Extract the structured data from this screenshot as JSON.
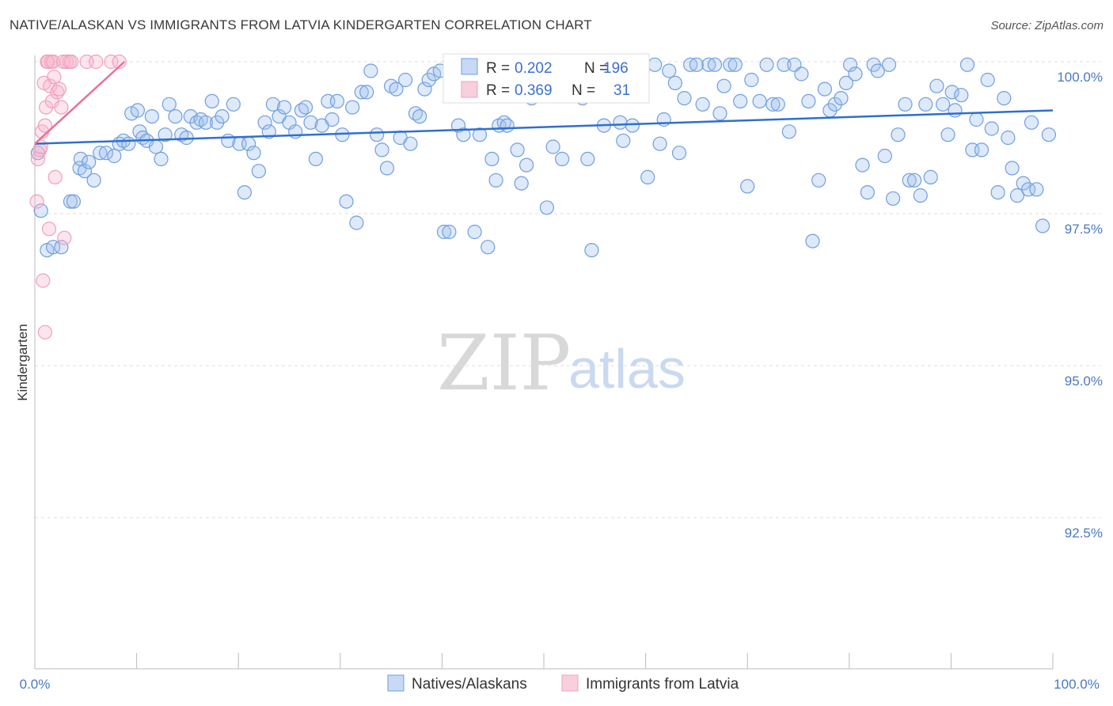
{
  "header": {
    "title": "NATIVE/ALASKAN VS IMMIGRANTS FROM LATVIA KINDERGARTEN CORRELATION CHART",
    "source": "Source: ZipAtlas.com"
  },
  "watermark": {
    "part1": "ZIP",
    "part2": "atlas"
  },
  "colors": {
    "blue": "#6f9fe0",
    "blue_line": "#2f6fd0",
    "pink": "#f0a0bc",
    "pink_line": "#e8709a",
    "tick_text": "#4a78c8"
  },
  "stats": [
    {
      "series": "Natives/Alaskans",
      "r_label": "R =",
      "r_value": "0.202",
      "n_label": "N =",
      "n_value": "196"
    },
    {
      "series": "Immigrants from Latvia",
      "r_label": "R =",
      "r_value": "0.369",
      "n_label": "N =",
      "n_value": "31"
    }
  ],
  "chart_data": {
    "type": "scatter",
    "title": "NATIVE/ALASKAN VS IMMIGRANTS FROM LATVIA KINDERGARTEN CORRELATION CHART",
    "xlabel": "",
    "ylabel": "Kindergarten",
    "xlim": [
      0,
      100
    ],
    "ylim": [
      90.0,
      100.5
    ],
    "x_tick_labels": [
      "0.0%",
      "100.0%"
    ],
    "y_ticks": [
      100.0,
      97.5,
      95.0,
      92.5
    ],
    "y_tick_labels": [
      "100.0%",
      "97.5%",
      "95.0%",
      "92.5%"
    ],
    "grid": "horizontal dashed",
    "legend": "bottom-center",
    "series": [
      {
        "name": "Natives/Alaskans",
        "color": "#6f9fe0",
        "trend": {
          "x": [
            0,
            100
          ],
          "y": [
            98.65,
            99.2
          ]
        },
        "points": [
          [
            0.3,
            98.5
          ],
          [
            0.6,
            97.55
          ],
          [
            1.2,
            96.9
          ],
          [
            1.8,
            96.95
          ],
          [
            2.6,
            96.95
          ],
          [
            3.5,
            97.7
          ],
          [
            3.8,
            97.7
          ],
          [
            4.4,
            98.25
          ],
          [
            4.5,
            98.4
          ],
          [
            4.9,
            98.2
          ],
          [
            5.3,
            98.35
          ],
          [
            5.8,
            98.05
          ],
          [
            6.4,
            98.5
          ],
          [
            7.0,
            98.5
          ],
          [
            7.8,
            98.45
          ],
          [
            8.3,
            98.65
          ],
          [
            8.7,
            98.7
          ],
          [
            9.2,
            98.65
          ],
          [
            9.5,
            99.15
          ],
          [
            10.1,
            99.2
          ],
          [
            10.3,
            98.85
          ],
          [
            10.6,
            98.75
          ],
          [
            11.0,
            98.7
          ],
          [
            11.5,
            99.1
          ],
          [
            11.9,
            98.6
          ],
          [
            12.4,
            98.4
          ],
          [
            12.8,
            98.8
          ],
          [
            13.2,
            99.3
          ],
          [
            13.8,
            99.1
          ],
          [
            14.4,
            98.8
          ],
          [
            14.9,
            98.75
          ],
          [
            15.3,
            99.1
          ],
          [
            15.9,
            99.0
          ],
          [
            16.3,
            99.05
          ],
          [
            16.8,
            99.0
          ],
          [
            17.4,
            99.35
          ],
          [
            17.9,
            99.0
          ],
          [
            18.4,
            99.1
          ],
          [
            19.0,
            98.7
          ],
          [
            19.5,
            99.3
          ],
          [
            20.1,
            98.65
          ],
          [
            20.6,
            97.85
          ],
          [
            21.0,
            98.65
          ],
          [
            21.5,
            98.5
          ],
          [
            22.0,
            98.2
          ],
          [
            22.6,
            99.0
          ],
          [
            23.0,
            98.85
          ],
          [
            23.4,
            99.3
          ],
          [
            24.0,
            99.1
          ],
          [
            24.5,
            99.25
          ],
          [
            25.0,
            99.0
          ],
          [
            25.6,
            98.85
          ],
          [
            26.2,
            99.2
          ],
          [
            26.6,
            99.25
          ],
          [
            27.1,
            99.0
          ],
          [
            27.6,
            98.4
          ],
          [
            28.2,
            98.95
          ],
          [
            28.8,
            99.35
          ],
          [
            29.2,
            99.05
          ],
          [
            29.7,
            99.35
          ],
          [
            30.2,
            98.8
          ],
          [
            30.6,
            97.7
          ],
          [
            31.2,
            99.25
          ],
          [
            31.6,
            97.35
          ],
          [
            32.1,
            99.5
          ],
          [
            32.6,
            99.5
          ],
          [
            33.0,
            99.85
          ],
          [
            33.6,
            98.8
          ],
          [
            34.1,
            98.55
          ],
          [
            34.6,
            98.25
          ],
          [
            35.0,
            99.6
          ],
          [
            35.5,
            99.55
          ],
          [
            35.9,
            98.75
          ],
          [
            36.4,
            99.7
          ],
          [
            36.9,
            98.65
          ],
          [
            37.4,
            99.15
          ],
          [
            37.8,
            99.1
          ],
          [
            38.3,
            99.55
          ],
          [
            38.7,
            99.7
          ],
          [
            39.2,
            99.8
          ],
          [
            39.8,
            99.85
          ],
          [
            40.2,
            97.2
          ],
          [
            40.7,
            97.2
          ],
          [
            41.2,
            99.55
          ],
          [
            41.6,
            98.95
          ],
          [
            42.1,
            98.8
          ],
          [
            42.6,
            99.45
          ],
          [
            43.2,
            97.2
          ],
          [
            43.7,
            98.8
          ],
          [
            44.1,
            99.6
          ],
          [
            44.5,
            96.95
          ],
          [
            44.9,
            98.4
          ],
          [
            45.3,
            98.05
          ],
          [
            45.6,
            98.95
          ],
          [
            46.1,
            99.0
          ],
          [
            46.4,
            98.95
          ],
          [
            46.9,
            99.85
          ],
          [
            47.4,
            98.55
          ],
          [
            47.8,
            98.0
          ],
          [
            48.3,
            98.3
          ],
          [
            48.8,
            99.4
          ],
          [
            49.4,
            99.95
          ],
          [
            50.0,
            99.95
          ],
          [
            50.3,
            97.6
          ],
          [
            50.9,
            98.6
          ],
          [
            51.3,
            99.6
          ],
          [
            51.8,
            98.4
          ],
          [
            52.4,
            99.95
          ],
          [
            52.9,
            99.85
          ],
          [
            53.3,
            99.5
          ],
          [
            53.8,
            99.4
          ],
          [
            54.3,
            98.4
          ],
          [
            54.7,
            96.9
          ],
          [
            55.3,
            99.9
          ],
          [
            55.9,
            98.95
          ],
          [
            56.5,
            99.95
          ],
          [
            57.0,
            99.9
          ],
          [
            57.5,
            99.0
          ],
          [
            57.8,
            98.7
          ],
          [
            58.3,
            99.95
          ],
          [
            58.7,
            98.95
          ],
          [
            59.2,
            99.9
          ],
          [
            59.7,
            99.85
          ],
          [
            60.2,
            98.1
          ],
          [
            60.9,
            99.95
          ],
          [
            61.4,
            98.65
          ],
          [
            61.8,
            99.05
          ],
          [
            62.3,
            99.85
          ],
          [
            62.9,
            99.65
          ],
          [
            63.3,
            98.5
          ],
          [
            63.8,
            99.4
          ],
          [
            64.4,
            99.95
          ],
          [
            65.0,
            99.95
          ],
          [
            65.6,
            99.3
          ],
          [
            66.2,
            99.95
          ],
          [
            66.8,
            99.95
          ],
          [
            67.3,
            99.15
          ],
          [
            67.7,
            99.6
          ],
          [
            68.3,
            99.95
          ],
          [
            68.8,
            99.95
          ],
          [
            69.3,
            99.35
          ],
          [
            70.0,
            97.95
          ],
          [
            70.4,
            99.7
          ],
          [
            71.2,
            99.35
          ],
          [
            71.9,
            99.95
          ],
          [
            72.5,
            99.3
          ],
          [
            73.0,
            99.3
          ],
          [
            73.6,
            99.95
          ],
          [
            74.1,
            98.85
          ],
          [
            74.6,
            99.95
          ],
          [
            75.3,
            99.8
          ],
          [
            76.0,
            99.35
          ],
          [
            76.4,
            97.05
          ],
          [
            77.0,
            98.05
          ],
          [
            77.6,
            99.55
          ],
          [
            78.1,
            99.2
          ],
          [
            78.6,
            99.3
          ],
          [
            79.2,
            99.4
          ],
          [
            79.7,
            99.65
          ],
          [
            80.1,
            99.95
          ],
          [
            80.6,
            99.8
          ],
          [
            81.3,
            98.3
          ],
          [
            81.8,
            97.85
          ],
          [
            82.4,
            99.95
          ],
          [
            82.8,
            99.85
          ],
          [
            83.5,
            98.45
          ],
          [
            83.9,
            99.95
          ],
          [
            84.3,
            97.75
          ],
          [
            84.8,
            98.8
          ],
          [
            85.5,
            99.3
          ],
          [
            85.9,
            98.05
          ],
          [
            86.4,
            98.05
          ],
          [
            87.0,
            97.8
          ],
          [
            87.5,
            99.3
          ],
          [
            88.0,
            98.1
          ],
          [
            88.6,
            99.6
          ],
          [
            89.2,
            99.3
          ],
          [
            89.7,
            98.8
          ],
          [
            90.1,
            99.5
          ],
          [
            90.4,
            99.2
          ],
          [
            91.0,
            99.45
          ],
          [
            91.6,
            99.95
          ],
          [
            92.1,
            98.55
          ],
          [
            92.5,
            99.05
          ],
          [
            93.0,
            98.55
          ],
          [
            93.6,
            99.7
          ],
          [
            94.0,
            98.9
          ],
          [
            94.6,
            97.85
          ],
          [
            95.2,
            99.4
          ],
          [
            95.6,
            98.75
          ],
          [
            96.0,
            98.25
          ],
          [
            96.5,
            97.8
          ],
          [
            97.1,
            98.0
          ],
          [
            97.6,
            97.9
          ],
          [
            97.9,
            99.0
          ],
          [
            98.4,
            97.9
          ],
          [
            99.0,
            97.3
          ],
          [
            99.6,
            98.8
          ]
        ]
      },
      {
        "name": "Immigrants from Latvia",
        "color": "#f0a0bc",
        "trend": {
          "x": [
            0,
            8.8
          ],
          "y": [
            98.65,
            100.0
          ]
        },
        "points": [
          [
            0.2,
            97.7
          ],
          [
            0.3,
            98.4
          ],
          [
            0.5,
            98.55
          ],
          [
            0.6,
            98.6
          ],
          [
            0.7,
            98.85
          ],
          [
            0.9,
            99.65
          ],
          [
            1.0,
            98.95
          ],
          [
            1.1,
            99.25
          ],
          [
            1.2,
            100.0
          ],
          [
            1.3,
            100.0
          ],
          [
            1.4,
            97.25
          ],
          [
            1.5,
            99.6
          ],
          [
            1.6,
            100.0
          ],
          [
            1.7,
            99.35
          ],
          [
            1.8,
            100.0
          ],
          [
            1.9,
            99.75
          ],
          [
            2.0,
            98.1
          ],
          [
            2.2,
            99.5
          ],
          [
            2.4,
            99.55
          ],
          [
            2.6,
            99.25
          ],
          [
            2.8,
            100.0
          ],
          [
            2.9,
            97.1
          ],
          [
            3.1,
            100.0
          ],
          [
            3.4,
            100.0
          ],
          [
            3.6,
            100.0
          ],
          [
            5.1,
            100.0
          ],
          [
            6.0,
            100.0
          ],
          [
            7.5,
            100.0
          ],
          [
            8.3,
            100.0
          ],
          [
            0.8,
            96.4
          ],
          [
            1.0,
            95.55
          ]
        ]
      }
    ]
  },
  "legend": {
    "items": [
      {
        "label": "Natives/Alaskans"
      },
      {
        "label": "Immigrants from Latvia"
      }
    ]
  }
}
